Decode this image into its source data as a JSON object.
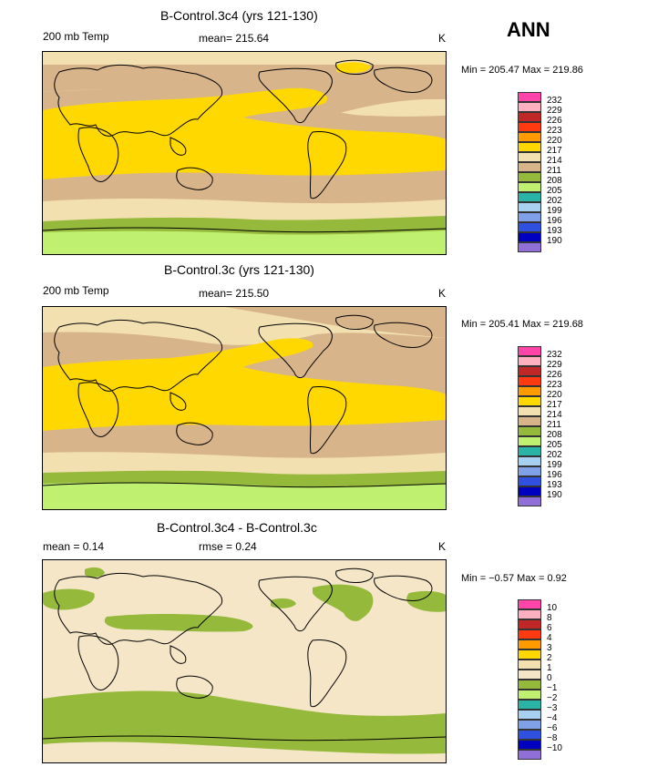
{
  "season": "ANN",
  "panels": [
    {
      "title": "B-Control.3c4 (yrs 121-130)",
      "left_label": "200 mb Temp",
      "center_label": "mean=  215.64",
      "units": "K",
      "minmax": "Min = 205.47 Max = 219.86"
    },
    {
      "title": "B-Control.3c (yrs 121-130)",
      "left_label": "200 mb Temp",
      "center_label": "mean=  215.50",
      "units": "K",
      "minmax": "Min = 205.41 Max = 219.68"
    },
    {
      "title": "B-Control.3c4 - B-Control.3c",
      "left_label": "mean =    0.14",
      "center_label": "rmse =    0.24",
      "units": "K",
      "minmax": "Min =  −0.57 Max =    0.92"
    }
  ],
  "colorbar_abs": {
    "labels": [
      "232",
      "229",
      "226",
      "223",
      "220",
      "217",
      "214",
      "211",
      "208",
      "205",
      "202",
      "199",
      "196",
      "193",
      "190"
    ],
    "colors": [
      "#ff44aa",
      "#ffb0c0",
      "#c02828",
      "#ff3a10",
      "#ff9a00",
      "#ffd800",
      "#f3e0b0",
      "#d7b48a",
      "#95b93a",
      "#c0f070",
      "#2ab4a8",
      "#a8d0f0",
      "#80a0e8",
      "#3050e0",
      "#0000c0",
      "#9070d8"
    ]
  },
  "colorbar_diff": {
    "labels": [
      "10",
      "8",
      "6",
      "4",
      "3",
      "2",
      "1",
      "0",
      "−1",
      "−2",
      "−3",
      "−4",
      "−6",
      "−8",
      "−10"
    ],
    "colors": [
      "#ff44aa",
      "#ffb0c0",
      "#c02828",
      "#ff3a10",
      "#ff9a00",
      "#ffd800",
      "#f3e0b0",
      "#f5e6c8",
      "#95b93a",
      "#c0f070",
      "#2ab4a8",
      "#a8d0f0",
      "#80a0e8",
      "#3050e0",
      "#0000c0",
      "#9070d8"
    ]
  }
}
